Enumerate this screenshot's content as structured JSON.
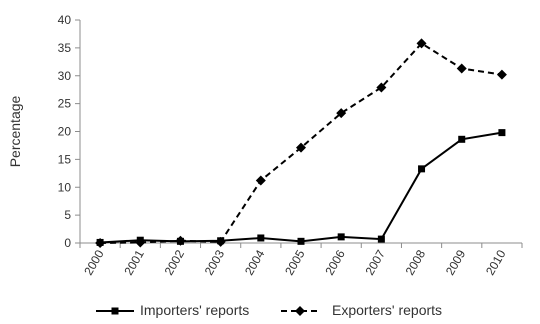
{
  "chart_data": {
    "type": "line",
    "title": "",
    "xlabel": "",
    "ylabel": "Percentage",
    "ylim": [
      0,
      40
    ],
    "y_ticks": [
      "0",
      "5",
      "10",
      "15",
      "20",
      "25",
      "30",
      "35",
      "40"
    ],
    "categories": [
      "2000",
      "2001",
      "2002",
      "2003",
      "2004",
      "2005",
      "2006",
      "2007",
      "2008",
      "2009",
      "2010"
    ],
    "grid": false,
    "legend_position": "bottom",
    "series": [
      {
        "name": "Importers' reports",
        "line_style": "solid",
        "marker": "square",
        "color": "#000000",
        "values": [
          0.1,
          0.5,
          0.3,
          0.4,
          0.9,
          0.3,
          1.1,
          0.7,
          13.3,
          18.6,
          19.8
        ]
      },
      {
        "name": "Exporters' reports",
        "line_style": "dashed",
        "marker": "diamond",
        "color": "#000000",
        "values": [
          0.0,
          0.1,
          0.4,
          0.2,
          11.2,
          17.1,
          23.3,
          27.9,
          35.8,
          31.3,
          30.2
        ]
      }
    ]
  }
}
